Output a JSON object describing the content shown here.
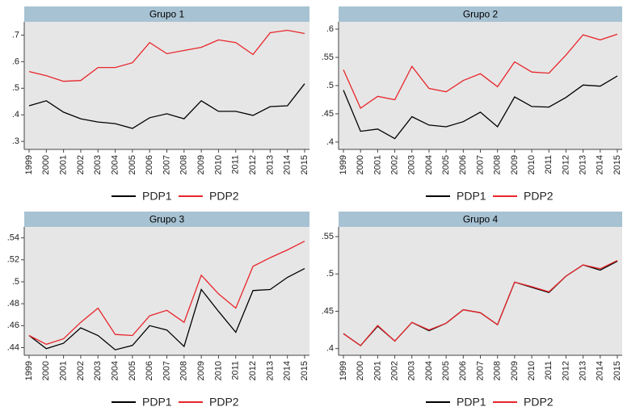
{
  "chart_data": [
    {
      "type": "line",
      "title": "Grupo 1",
      "categories": [
        "1999",
        "2000",
        "2001",
        "2002",
        "2003",
        "2004",
        "2005",
        "2006",
        "2007",
        "2008",
        "2009",
        "2010",
        "2011",
        "2012",
        "2013",
        "2014",
        "2015"
      ],
      "series": [
        {
          "name": "PDP1",
          "color": "#000000",
          "values": [
            0.434,
            0.453,
            0.41,
            0.385,
            0.373,
            0.367,
            0.349,
            0.389,
            0.404,
            0.385,
            0.453,
            0.413,
            0.413,
            0.398,
            0.431,
            0.434,
            0.517
          ]
        },
        {
          "name": "PDP2",
          "color": "#e8262b",
          "values": [
            0.563,
            0.547,
            0.526,
            0.529,
            0.578,
            0.578,
            0.596,
            0.672,
            0.63,
            0.642,
            0.654,
            0.682,
            0.672,
            0.627,
            0.709,
            0.718,
            0.706
          ]
        }
      ],
      "ylim": [
        0.27,
        0.75
      ],
      "yticks": [
        {
          "value": 0.3,
          "label": ".3"
        },
        {
          "value": 0.4,
          "label": ".4"
        },
        {
          "value": 0.5,
          "label": ".5"
        },
        {
          "value": 0.6,
          "label": ".6"
        },
        {
          "value": 0.7,
          "label": ".7"
        }
      ],
      "legend": "bottom"
    },
    {
      "type": "line",
      "title": "Grupo 2",
      "categories": [
        "1999",
        "2000",
        "2001",
        "2002",
        "2003",
        "2004",
        "2005",
        "2006",
        "2007",
        "2008",
        "2009",
        "2010",
        "2011",
        "2012",
        "2013",
        "2014",
        "2015"
      ],
      "series": [
        {
          "name": "PDP1",
          "color": "#000000",
          "values": [
            0.492,
            0.419,
            0.423,
            0.406,
            0.445,
            0.43,
            0.427,
            0.436,
            0.453,
            0.427,
            0.48,
            0.463,
            0.462,
            0.479,
            0.501,
            0.499,
            0.517
          ]
        },
        {
          "name": "PDP2",
          "color": "#e8262b",
          "values": [
            0.528,
            0.46,
            0.481,
            0.475,
            0.534,
            0.495,
            0.489,
            0.509,
            0.521,
            0.498,
            0.542,
            0.524,
            0.522,
            0.554,
            0.59,
            0.581,
            0.591
          ]
        }
      ],
      "ylim": [
        0.387,
        0.613
      ],
      "yticks": [
        {
          "value": 0.4,
          "label": ".4"
        },
        {
          "value": 0.45,
          "label": ".45"
        },
        {
          "value": 0.5,
          "label": ".5"
        },
        {
          "value": 0.55,
          "label": ".55"
        },
        {
          "value": 0.6,
          "label": ".6"
        }
      ],
      "legend": "bottom"
    },
    {
      "type": "line",
      "title": "Grupo 3",
      "categories": [
        "1999",
        "2000",
        "2001",
        "2002",
        "2003",
        "2004",
        "2005",
        "2006",
        "2007",
        "2008",
        "2009",
        "2010",
        "2011",
        "2012",
        "2013",
        "2014",
        "2015"
      ],
      "series": [
        {
          "name": "PDP1",
          "color": "#000000",
          "values": [
            0.451,
            0.439,
            0.444,
            0.458,
            0.451,
            0.438,
            0.442,
            0.46,
            0.456,
            0.441,
            0.493,
            0.473,
            0.454,
            0.492,
            0.493,
            0.504,
            0.512
          ]
        },
        {
          "name": "PDP2",
          "color": "#e8262b",
          "values": [
            0.451,
            0.443,
            0.448,
            0.463,
            0.476,
            0.452,
            0.451,
            0.469,
            0.474,
            0.463,
            0.506,
            0.489,
            0.476,
            0.514,
            0.522,
            0.529,
            0.537
          ]
        }
      ],
      "ylim": [
        0.433,
        0.55
      ],
      "yticks": [
        {
          "value": 0.44,
          "label": ".44"
        },
        {
          "value": 0.46,
          "label": ".46"
        },
        {
          "value": 0.48,
          "label": ".48"
        },
        {
          "value": 0.5,
          "label": ".5"
        },
        {
          "value": 0.52,
          "label": ".52"
        },
        {
          "value": 0.54,
          "label": ".54"
        }
      ],
      "legend": "bottom"
    },
    {
      "type": "line",
      "title": "Grupo 4",
      "categories": [
        "1999",
        "2000",
        "2001",
        "2002",
        "2003",
        "2004",
        "2005",
        "2006",
        "2007",
        "2008",
        "2009",
        "2010",
        "2011",
        "2012",
        "2013",
        "2014",
        "2015"
      ],
      "series": [
        {
          "name": "PDP1",
          "color": "#000000",
          "values": [
            0.42,
            0.404,
            0.43,
            0.41,
            0.435,
            0.424,
            0.434,
            0.452,
            0.448,
            0.432,
            0.489,
            0.482,
            0.475,
            0.497,
            0.512,
            0.505,
            0.517
          ]
        },
        {
          "name": "PDP2",
          "color": "#e8262b",
          "values": [
            0.42,
            0.404,
            0.431,
            0.41,
            0.435,
            0.425,
            0.434,
            0.452,
            0.448,
            0.432,
            0.489,
            0.483,
            0.476,
            0.497,
            0.512,
            0.507,
            0.518
          ]
        }
      ],
      "ylim": [
        0.391,
        0.563
      ],
      "yticks": [
        {
          "value": 0.4,
          "label": ".4"
        },
        {
          "value": 0.45,
          "label": ".45"
        },
        {
          "value": 0.5,
          "label": ".5"
        },
        {
          "value": 0.55,
          "label": ".55"
        }
      ],
      "legend": "bottom"
    }
  ]
}
